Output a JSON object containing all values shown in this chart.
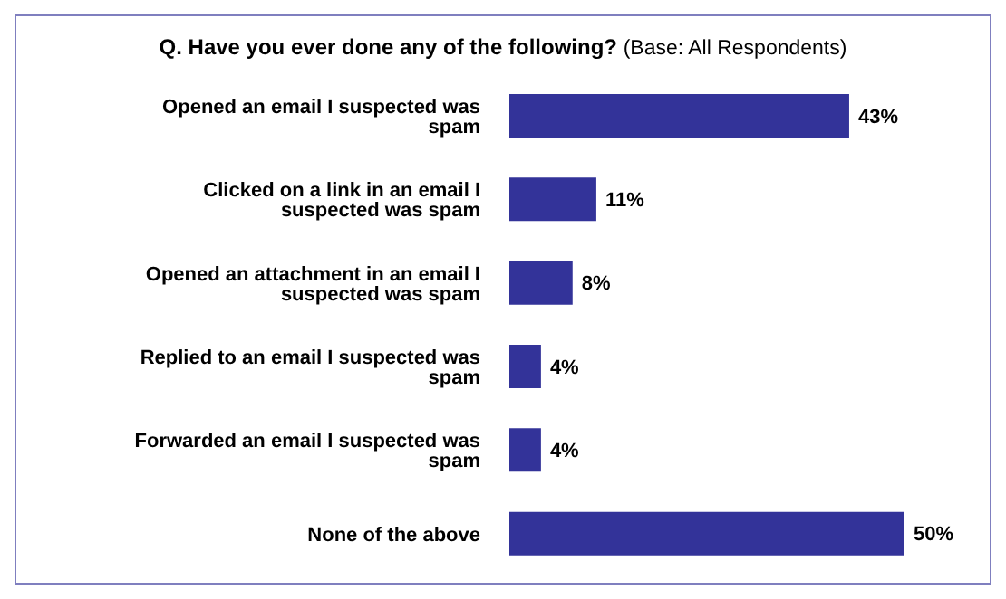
{
  "chart_data": {
    "type": "bar",
    "orientation": "horizontal",
    "title": "Q. Have you ever done any of the following?",
    "subtitle": "(Base: All Respondents)",
    "categories": [
      "Opened an email I suspected was spam",
      "Clicked on a link in an email I suspected was spam",
      "Opened an attachment in an email I suspected was spam",
      "Replied to an email I suspected was spam",
      "Forwarded an email I suspected was spam",
      "None of the above"
    ],
    "values": [
      43,
      11,
      8,
      4,
      4,
      50
    ],
    "value_labels": [
      "43%",
      "11%",
      "8%",
      "4%",
      "4%",
      "50%"
    ],
    "color": "#333399",
    "grid": false,
    "legend": false
  }
}
